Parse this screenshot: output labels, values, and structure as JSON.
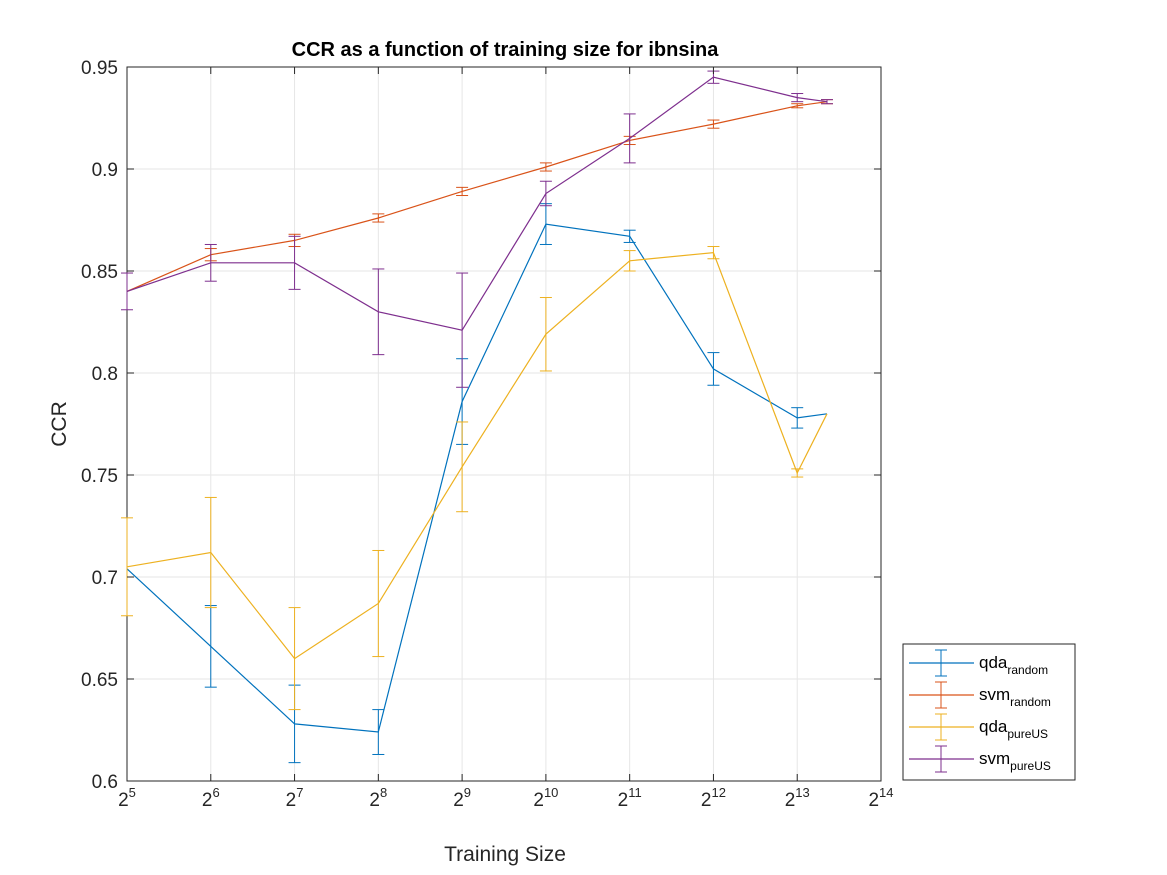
{
  "chart_data": {
    "type": "line",
    "title": "CCR as a function of training size for ibnsina",
    "xlabel": "Training Size",
    "ylabel": "CCR",
    "x_scale": "log2",
    "xlim": [
      32,
      16384
    ],
    "ylim": [
      0.6,
      0.95
    ],
    "x_ticks": [
      {
        "base": "2",
        "exp": "5",
        "value": 32
      },
      {
        "base": "2",
        "exp": "6",
        "value": 64
      },
      {
        "base": "2",
        "exp": "7",
        "value": 128
      },
      {
        "base": "2",
        "exp": "8",
        "value": 256
      },
      {
        "base": "2",
        "exp": "9",
        "value": 512
      },
      {
        "base": "2",
        "exp": "10",
        "value": 1024
      },
      {
        "base": "2",
        "exp": "11",
        "value": 2048
      },
      {
        "base": "2",
        "exp": "12",
        "value": 4096
      },
      {
        "base": "2",
        "exp": "13",
        "value": 8192
      },
      {
        "base": "2",
        "exp": "14",
        "value": 16384
      }
    ],
    "y_ticks": [
      "0.6",
      "0.65",
      "0.7",
      "0.75",
      "0.8",
      "0.85",
      "0.9",
      "0.95"
    ],
    "grid": true,
    "legend_position": "bottom-right-outside",
    "x": [
      32,
      64,
      128,
      256,
      512,
      1024,
      2048,
      4096,
      8192,
      10480
    ],
    "series": [
      {
        "name": "qda",
        "sub": "random",
        "color": "#0072BD",
        "values": [
          0.704,
          0.666,
          0.628,
          0.624,
          0.786,
          0.873,
          0.867,
          0.802,
          0.778,
          0.78
        ],
        "errors": [
          0.0,
          0.02,
          0.019,
          0.011,
          0.021,
          0.01,
          0.003,
          0.008,
          0.005,
          0.0
        ]
      },
      {
        "name": "svm",
        "sub": "random",
        "color": "#D95319",
        "values": [
          0.84,
          0.858,
          0.865,
          0.876,
          0.889,
          0.901,
          0.914,
          0.922,
          0.931,
          0.933
        ],
        "errors": [
          0.0,
          0.003,
          0.003,
          0.002,
          0.002,
          0.002,
          0.002,
          0.002,
          0.001,
          0.001
        ]
      },
      {
        "name": "qda",
        "sub": "pureUS",
        "color": "#EDB120",
        "values": [
          0.705,
          0.712,
          0.66,
          0.687,
          0.754,
          0.819,
          0.855,
          0.859,
          0.751,
          0.78
        ],
        "errors": [
          0.024,
          0.027,
          0.025,
          0.026,
          0.022,
          0.018,
          0.005,
          0.003,
          0.002,
          0.0
        ]
      },
      {
        "name": "svm",
        "sub": "pureUS",
        "color": "#7E2F8E",
        "values": [
          0.84,
          0.854,
          0.854,
          0.83,
          0.821,
          0.888,
          0.915,
          0.945,
          0.935,
          0.933
        ],
        "errors": [
          0.009,
          0.009,
          0.013,
          0.021,
          0.028,
          0.006,
          0.012,
          0.003,
          0.002,
          0.001
        ]
      }
    ]
  }
}
